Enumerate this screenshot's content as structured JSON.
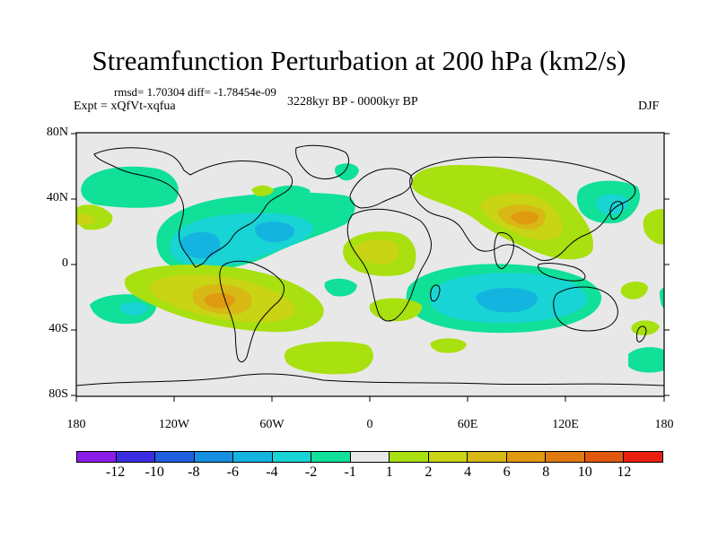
{
  "title": "Streamfunction Perturbation at 200 hPa (km2/s)",
  "stats": "rmsd= 1.70304 diff= -1.78454e-09",
  "expt": "Expt = xQfVt-xqfua",
  "period": "3228kyr BP - 0000kyr BP",
  "season": "DJF",
  "y_labels": [
    "80N",
    "40N",
    "0",
    "40S",
    "80S"
  ],
  "x_labels": [
    "180",
    "120W",
    "60W",
    "0",
    "60E",
    "120E",
    "180"
  ],
  "colorbar": {
    "colors": [
      "#8a1ee8",
      "#3c2ee0",
      "#1f5fe0",
      "#168fe0",
      "#14b4e0",
      "#18d4d4",
      "#10e098",
      "#e8e8e8",
      "#a8e010",
      "#c8d414",
      "#d8b814",
      "#e09a10",
      "#e07a10",
      "#e05810",
      "#e82010"
    ],
    "labels": [
      "-12",
      "-10",
      "-8",
      "-6",
      "-4",
      "-2",
      "-1",
      "1",
      "2",
      "4",
      "6",
      "8",
      "10",
      "12"
    ]
  },
  "map": {
    "ocean_color": "#e8e8e8",
    "coast_color": "#000000"
  }
}
